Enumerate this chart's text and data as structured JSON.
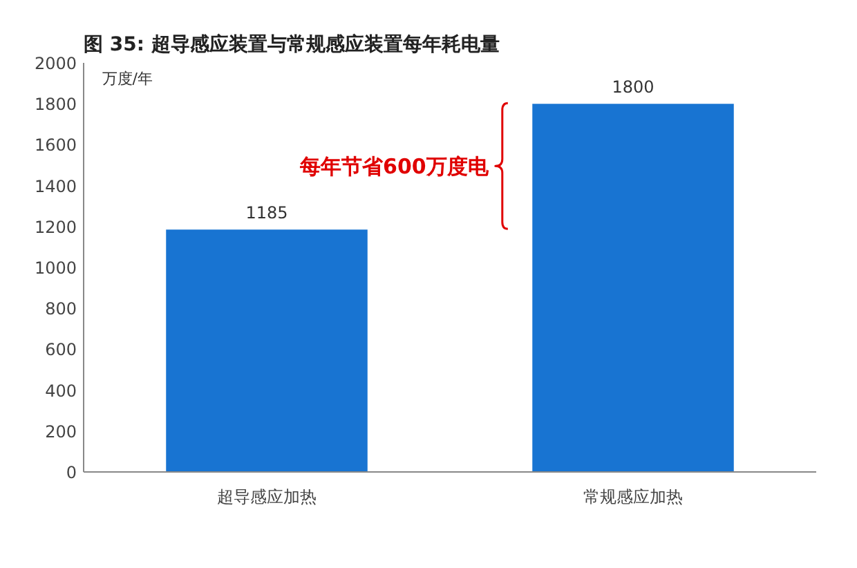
{
  "chart_data": {
    "type": "bar",
    "title": "图 35:  超导感应装置与常规感应装置每年耗电量",
    "ylabel": "万度/年",
    "categories": [
      "超导感应加热",
      "常规感应加热"
    ],
    "values": [
      1185,
      1800
    ],
    "color": "#1874d2",
    "data_labels": true,
    "ylim": [
      0,
      2000
    ],
    "yticks": [
      0,
      200,
      400,
      600,
      800,
      1000,
      1200,
      1400,
      1600,
      1800,
      2000
    ],
    "grid": false,
    "annotations": [
      "每年节省600万度电"
    ]
  }
}
